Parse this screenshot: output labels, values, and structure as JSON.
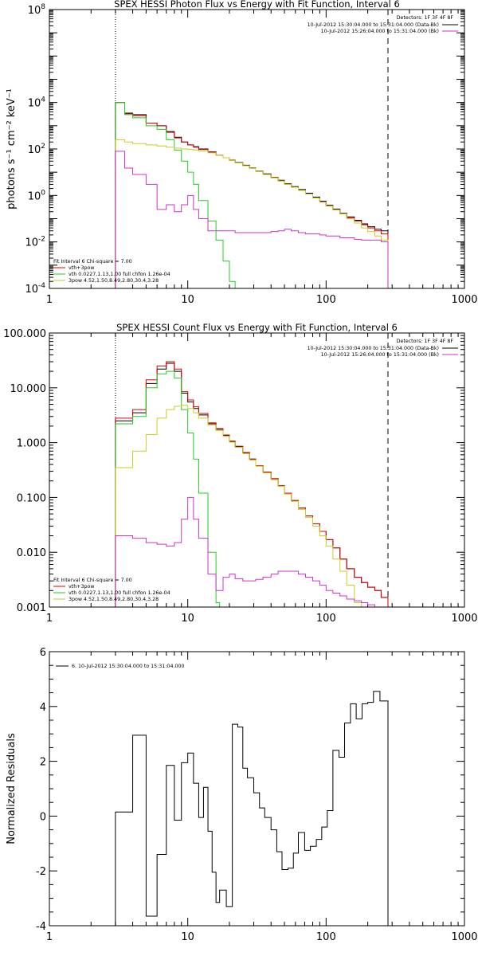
{
  "chart_data": [
    {
      "type": "line",
      "title": "SPEX HESSI Photon Flux vs Energy with Fit Function, Interval 6",
      "xlabel": "",
      "ylabel": "photons s⁻¹ cm⁻² keV⁻¹",
      "x_scale": "log",
      "y_scale": "log",
      "xlim": [
        1,
        1000
      ],
      "ylim": [
        0.0001,
        100000000
      ],
      "x_ticks": [
        1,
        10,
        100,
        1000
      ],
      "x_tick_labels": [
        "1",
        "10",
        "100",
        "1000"
      ],
      "y_ticks": [
        0.0001,
        0.01,
        1,
        100,
        10000,
        100000000
      ],
      "y_tick_base": "10",
      "y_tick_exponents": [
        "-4",
        "-2",
        "0",
        "2",
        "4",
        "8"
      ],
      "legend_top_right": {
        "detectors": "Detectors: 1F 3F 4F 8F",
        "lines": [
          {
            "text": "10-Jul-2012 15:30:04.000 to 15:31:04.000 (Data-Bk)",
            "color": "#000000"
          },
          {
            "text": "10-Jul-2012 15:26:04.000 to 15:31:04.000 (Bk)",
            "color": "#cc33cc"
          }
        ]
      },
      "legend_bottom_left": {
        "header": "Fit Interval 6    Chi-square = 7.00",
        "lines": [
          {
            "text": "vth+3pow",
            "color": "#dd0000"
          },
          {
            "text": "vth 0.0227,1.13,1.00  full chfon 1.26e-04",
            "color": "#22cc22"
          },
          {
            "text": "3pow 4.52,1.50,8.49,2.80,30.4,3.28",
            "color": "#cccc22"
          }
        ]
      },
      "vertical_markers": [
        {
          "x": 3,
          "style": "dotted"
        },
        {
          "x": 280,
          "style": "dashed"
        }
      ],
      "series": [
        {
          "name": "Data-Bk",
          "color": "#000000",
          "edges": [
            3,
            3.5,
            4,
            5,
            6,
            7,
            8,
            9,
            10,
            11,
            12,
            14,
            16,
            18,
            20,
            22,
            25,
            28,
            31,
            35,
            40,
            45,
            50,
            56,
            63,
            71,
            80,
            90,
            100,
            112,
            126,
            141,
            160,
            180,
            200,
            225,
            250,
            280
          ],
          "values": [
            10000,
            3500,
            3000,
            1300,
            1000,
            560,
            320,
            200,
            150,
            125,
            100,
            75,
            55,
            42,
            33,
            26,
            20,
            15,
            11,
            8.5,
            6,
            4.5,
            3.2,
            2.4,
            1.8,
            1.25,
            0.85,
            0.57,
            0.38,
            0.26,
            0.17,
            0.12,
            0.085,
            0.06,
            0.045,
            0.035,
            0.03
          ]
        },
        {
          "name": "vth+3pow",
          "color": "#dd0000",
          "edges": [
            3,
            3.5,
            4,
            5,
            6,
            7,
            8,
            9,
            10,
            11,
            12,
            14,
            16,
            18,
            20,
            22,
            25,
            28,
            31,
            35,
            40,
            45,
            50,
            56,
            63,
            71,
            80,
            90,
            100,
            112,
            126,
            141,
            160,
            180,
            200,
            225,
            250,
            280
          ],
          "values": [
            10000,
            3300,
            2700,
            1300,
            1000,
            520,
            300,
            200,
            150,
            120,
            95,
            72,
            55,
            42,
            32,
            25,
            19,
            14.5,
            10.5,
            8,
            5.8,
            4.2,
            3,
            2.25,
            1.65,
            1.15,
            0.78,
            0.52,
            0.35,
            0.24,
            0.16,
            0.11,
            0.08,
            0.055,
            0.04,
            0.03,
            0.022
          ]
        },
        {
          "name": "vth",
          "color": "#22cc22",
          "edges": [
            3,
            3.5,
            4,
            5,
            6,
            7,
            8,
            9,
            10,
            11,
            12,
            14,
            16,
            18,
            20,
            22
          ],
          "values": [
            10000,
            3000,
            2200,
            1000,
            700,
            250,
            90,
            30,
            10,
            3,
            0.6,
            0.08,
            0.012,
            0.0015,
            0.0002
          ]
        },
        {
          "name": "3pow",
          "color": "#cccc22",
          "edges": [
            3,
            3.5,
            4,
            5,
            6,
            7,
            8,
            9,
            10,
            11,
            12,
            14,
            16,
            18,
            20,
            22,
            25,
            28,
            31,
            35,
            40,
            45,
            50,
            56,
            63,
            71,
            80,
            90,
            100,
            112,
            126,
            141,
            160,
            180,
            200,
            225,
            250,
            280
          ],
          "values": [
            250,
            200,
            170,
            150,
            135,
            120,
            108,
            100,
            95,
            90,
            82,
            68,
            55,
            42,
            32,
            25,
            19,
            14.5,
            10.5,
            8,
            5.8,
            4.2,
            3,
            2.25,
            1.65,
            1.15,
            0.78,
            0.52,
            0.35,
            0.24,
            0.16,
            0.1,
            0.065,
            0.04,
            0.028,
            0.018,
            0.012
          ]
        },
        {
          "name": "Bk",
          "color": "#cc33cc",
          "edges": [
            3,
            3.5,
            4,
            5,
            6,
            7,
            8,
            9,
            10,
            11,
            12,
            14,
            16,
            18,
            20,
            22,
            25,
            28,
            31,
            35,
            40,
            45,
            50,
            56,
            63,
            71,
            80,
            90,
            100,
            112,
            126,
            141,
            160,
            180,
            200,
            225,
            250,
            280
          ],
          "values": [
            80,
            15,
            8,
            3,
            0.25,
            0.4,
            0.2,
            0.4,
            1,
            0.25,
            0.1,
            0.03,
            0.03,
            0.03,
            0.03,
            0.025,
            0.025,
            0.025,
            0.025,
            0.025,
            0.028,
            0.03,
            0.035,
            0.03,
            0.025,
            0.022,
            0.022,
            0.02,
            0.018,
            0.018,
            0.015,
            0.015,
            0.013,
            0.012,
            0.012,
            0.012,
            0.01
          ]
        }
      ]
    },
    {
      "type": "line",
      "title": "SPEX HESSI Count Flux vs Energy with Fit Function, Interval 6",
      "xlabel": "",
      "ylabel": "",
      "x_scale": "log",
      "y_scale": "log",
      "xlim": [
        1,
        1000
      ],
      "ylim": [
        0.001,
        100
      ],
      "x_ticks": [
        1,
        10,
        100,
        1000
      ],
      "x_tick_labels": [
        "1",
        "10",
        "100",
        "1000"
      ],
      "y_ticks": [
        0.001,
        0.01,
        0.1,
        1,
        10,
        100
      ],
      "y_tick_labels": [
        "0.001",
        "0.010",
        "0.100",
        "1.000",
        "10.000",
        "100.000"
      ],
      "legend_top_right": {
        "detectors": "Detectors: 1F 3F 4F 8F",
        "lines": [
          {
            "text": "10-Jul-2012 15:30:04.000 to 15:31:04.000 (Data-Bk)",
            "color": "#000000"
          },
          {
            "text": "10-Jul-2012 15:26:04.000 to 15:31:04.000 (Bk)",
            "color": "#cc33cc"
          }
        ]
      },
      "legend_bottom_left": {
        "header": "Fit Interval 6    Chi-square = 7.00",
        "lines": [
          {
            "text": "vth+3pow",
            "color": "#dd0000"
          },
          {
            "text": "vth 0.0227,1.13,1.00  full chfon 1.26e-04",
            "color": "#22cc22"
          },
          {
            "text": "3pow 4.52,1.50,8.49,2.80,30.4,3.28",
            "color": "#cccc22"
          }
        ]
      },
      "vertical_markers": [
        {
          "x": 3,
          "style": "dotted"
        },
        {
          "x": 280,
          "style": "dashed"
        }
      ],
      "series": [
        {
          "name": "Data-Bk",
          "color": "#000000",
          "edges": [
            3,
            4,
            5,
            6,
            7,
            8,
            9,
            10,
            11,
            12,
            14,
            16,
            18,
            20,
            22,
            25,
            28,
            31,
            35,
            40,
            45,
            50,
            56,
            63,
            71,
            80,
            90,
            100,
            112,
            126,
            141,
            160,
            180,
            200,
            225,
            250,
            280
          ],
          "values": [
            2.5,
            3.5,
            12,
            22,
            28,
            20,
            8,
            5.5,
            4.2,
            3.2,
            2.2,
            1.75,
            1.35,
            1.05,
            0.85,
            0.65,
            0.5,
            0.38,
            0.29,
            0.22,
            0.165,
            0.12,
            0.088,
            0.064,
            0.046,
            0.033,
            0.024,
            0.017,
            0.012,
            0.0075,
            0.005,
            0.0035,
            0.0028,
            0.0023,
            0.002,
            0.0015
          ]
        },
        {
          "name": "vth+3pow",
          "color": "#dd0000",
          "edges": [
            3,
            4,
            5,
            6,
            7,
            8,
            9,
            10,
            11,
            12,
            14,
            16,
            18,
            20,
            22,
            25,
            28,
            31,
            35,
            40,
            45,
            50,
            56,
            63,
            71,
            80,
            90,
            100,
            112,
            126,
            141,
            160,
            180,
            200,
            225,
            250,
            280
          ],
          "values": [
            2.8,
            4,
            14,
            25,
            30,
            22,
            8.5,
            6,
            4.5,
            3.4,
            2.3,
            1.8,
            1.38,
            1.07,
            0.86,
            0.66,
            0.5,
            0.38,
            0.29,
            0.22,
            0.165,
            0.12,
            0.088,
            0.064,
            0.046,
            0.033,
            0.024,
            0.017,
            0.012,
            0.0075,
            0.005,
            0.0035,
            0.0028,
            0.0023,
            0.002,
            0.0015
          ]
        },
        {
          "name": "vth",
          "color": "#22cc22",
          "edges": [
            3,
            4,
            5,
            6,
            7,
            8,
            9,
            10,
            11,
            12,
            14,
            16,
            17
          ],
          "values": [
            2.2,
            3,
            10,
            18,
            20,
            15,
            4,
            1.5,
            0.5,
            0.12,
            0.01,
            0.0012
          ]
        },
        {
          "name": "3pow",
          "color": "#cccc22",
          "edges": [
            3,
            4,
            5,
            6,
            7,
            8,
            9,
            10,
            11,
            12,
            14,
            16,
            18,
            20,
            22,
            25,
            28,
            31,
            35,
            40,
            45,
            50,
            56,
            63,
            71,
            80,
            90,
            100,
            112,
            126,
            141,
            160,
            180
          ],
          "values": [
            0.35,
            0.7,
            1.4,
            2.8,
            4,
            4.6,
            4.8,
            4.2,
            3.5,
            2.8,
            2.1,
            1.65,
            1.3,
            1.02,
            0.82,
            0.63,
            0.48,
            0.37,
            0.28,
            0.21,
            0.16,
            0.115,
            0.085,
            0.06,
            0.043,
            0.03,
            0.02,
            0.013,
            0.0075,
            0.0045,
            0.0025,
            0.0012
          ]
        },
        {
          "name": "Bk",
          "color": "#cc33cc",
          "edges": [
            3,
            4,
            5,
            6,
            7,
            8,
            9,
            10,
            11,
            12,
            14,
            16,
            18,
            20,
            22,
            25,
            28,
            31,
            35,
            40,
            45,
            50,
            56,
            63,
            71,
            80,
            90,
            100,
            112,
            126,
            141,
            160,
            180,
            200,
            225,
            250,
            280
          ],
          "values": [
            0.02,
            0.018,
            0.015,
            0.014,
            0.013,
            0.015,
            0.04,
            0.1,
            0.04,
            0.018,
            0.004,
            0.002,
            0.0035,
            0.004,
            0.0033,
            0.003,
            0.003,
            0.0032,
            0.0035,
            0.004,
            0.0045,
            0.0045,
            0.0045,
            0.004,
            0.0035,
            0.003,
            0.0025,
            0.002,
            0.0018,
            0.0016,
            0.0014,
            0.0013,
            0.0012,
            0.0011,
            0.001,
            0.001
          ]
        }
      ]
    },
    {
      "type": "line",
      "title": "",
      "xlabel": "",
      "ylabel": "Normalized Residuals",
      "x_scale": "log",
      "y_scale": "linear",
      "xlim": [
        1,
        1000
      ],
      "ylim": [
        -4,
        6
      ],
      "x_ticks": [
        1,
        10,
        100,
        1000
      ],
      "x_tick_labels": [
        "1",
        "10",
        "100",
        "1000"
      ],
      "y_ticks": [
        -4,
        -2,
        0,
        2,
        4,
        6
      ],
      "y_tick_labels": [
        "-4",
        "-2",
        "0",
        "2",
        "4",
        "6"
      ],
      "legend_top_left": {
        "lines": [
          {
            "text": "6. 10-Jul-2012 15:30:04.000 to 15:31:04.000",
            "color": "#000000"
          }
        ]
      },
      "series": [
        {
          "name": "6. 10-Jul-2012 15:30:04.000 to 15:31:04.000",
          "color": "#000000",
          "edges": [
            3,
            4,
            5,
            6,
            7,
            8,
            9,
            10,
            11,
            12,
            13,
            14,
            15,
            16,
            17,
            19,
            21,
            23,
            25,
            27,
            30,
            33,
            36,
            40,
            44,
            48,
            53,
            58,
            63,
            70,
            77,
            85,
            93,
            102,
            112,
            124,
            136,
            150,
            165,
            182,
            200,
            220,
            245,
            280
          ],
          "values": [
            0.15,
            2.95,
            -3.65,
            -1.4,
            1.85,
            -0.15,
            1.95,
            2.3,
            1.2,
            -0.05,
            1.05,
            -0.55,
            -2.05,
            -3.15,
            -2.7,
            -3.3,
            3.35,
            3.25,
            1.75,
            1.4,
            0.85,
            0.3,
            -0.05,
            -0.5,
            -1.3,
            -1.95,
            -1.9,
            -1.35,
            -0.6,
            -1.25,
            -1.1,
            -0.85,
            -0.4,
            0.2,
            2.4,
            2.15,
            3.4,
            4.1,
            3.55,
            4.1,
            4.15,
            4.55,
            4.2
          ]
        }
      ]
    }
  ]
}
